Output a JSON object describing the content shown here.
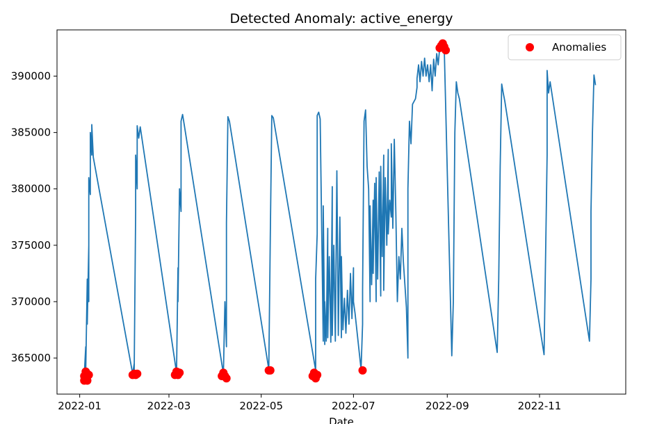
{
  "chart_data": {
    "type": "line",
    "title": "Detected Anomaly: active_energy",
    "xlabel": "Date",
    "ylabel": "",
    "x_tick_labels": [
      "2022-01",
      "2022-03",
      "2022-05",
      "2022-07",
      "2022-09",
      "2022-11"
    ],
    "y_tick_labels": [
      "365000",
      "370000",
      "375000",
      "380000",
      "385000",
      "390000"
    ],
    "y_ticks": [
      365000,
      370000,
      375000,
      380000,
      385000,
      390000
    ],
    "ylim": [
      361800,
      394100
    ],
    "xlim": [
      "2021-12-17",
      "2022-12-28"
    ],
    "grid": false,
    "legend_position": "top-right",
    "series": [
      {
        "type": "line",
        "color": "#1f77b4",
        "points": [
          [
            "2022-01-04",
            363500
          ],
          [
            "2022-01-05",
            366000
          ],
          [
            "2022-01-05",
            363800
          ],
          [
            "2022-01-06",
            372000
          ],
          [
            "2022-01-06",
            368000
          ],
          [
            "2022-01-07",
            375000
          ],
          [
            "2022-01-07",
            370000
          ],
          [
            "2022-01-07",
            381000
          ],
          [
            "2022-01-08",
            379500
          ],
          [
            "2022-01-08",
            385000
          ],
          [
            "2022-01-09",
            383000
          ],
          [
            "2022-01-09",
            385700
          ],
          [
            "2022-01-10",
            382800
          ],
          [
            "2022-02-05",
            363600
          ],
          [
            "2022-02-06",
            364500
          ],
          [
            "2022-02-06",
            363800
          ],
          [
            "2022-02-07",
            378000
          ],
          [
            "2022-02-07",
            383000
          ],
          [
            "2022-02-08",
            380000
          ],
          [
            "2022-02-08",
            385600
          ],
          [
            "2022-02-09",
            384500
          ],
          [
            "2022-02-10",
            385500
          ],
          [
            "2022-03-06",
            363700
          ],
          [
            "2022-03-07",
            373000
          ],
          [
            "2022-03-07",
            370000
          ],
          [
            "2022-03-08",
            380000
          ],
          [
            "2022-03-09",
            378000
          ],
          [
            "2022-03-09",
            386000
          ],
          [
            "2022-03-10",
            386600
          ],
          [
            "2022-03-11",
            385800
          ],
          [
            "2022-04-06",
            363600
          ],
          [
            "2022-04-07",
            370000
          ],
          [
            "2022-04-08",
            366000
          ],
          [
            "2022-04-08",
            377000
          ],
          [
            "2022-04-09",
            386400
          ],
          [
            "2022-04-10",
            386000
          ],
          [
            "2022-05-06",
            364000
          ],
          [
            "2022-05-07",
            376000
          ],
          [
            "2022-05-08",
            386500
          ],
          [
            "2022-05-09",
            386300
          ],
          [
            "2022-06-06",
            363900
          ],
          [
            "2022-06-06",
            372000
          ],
          [
            "2022-06-07",
            376000
          ],
          [
            "2022-06-07",
            386500
          ],
          [
            "2022-06-08",
            386800
          ],
          [
            "2022-06-09",
            386200
          ],
          [
            "2022-06-11",
            366500
          ],
          [
            "2022-06-11",
            378500
          ],
          [
            "2022-06-12",
            366200
          ],
          [
            "2022-06-12",
            370000
          ],
          [
            "2022-06-13",
            366500
          ],
          [
            "2022-06-14",
            376500
          ],
          [
            "2022-06-14",
            366800
          ],
          [
            "2022-06-15",
            374000
          ],
          [
            "2022-06-16",
            366400
          ],
          [
            "2022-06-17",
            380200
          ],
          [
            "2022-06-17",
            367000
          ],
          [
            "2022-06-18",
            375000
          ],
          [
            "2022-06-19",
            366500
          ],
          [
            "2022-06-20",
            381600
          ],
          [
            "2022-06-21",
            367000
          ],
          [
            "2022-06-22",
            377500
          ],
          [
            "2022-06-23",
            366800
          ],
          [
            "2022-06-23",
            374000
          ],
          [
            "2022-06-24",
            367500
          ],
          [
            "2022-06-25",
            370300
          ],
          [
            "2022-06-26",
            367200
          ],
          [
            "2022-06-27",
            371000
          ],
          [
            "2022-06-28",
            368000
          ],
          [
            "2022-06-29",
            372500
          ],
          [
            "2022-06-30",
            368500
          ],
          [
            "2022-07-01",
            373000
          ],
          [
            "2022-07-01",
            370000
          ],
          [
            "2022-07-02",
            369000
          ],
          [
            "2022-07-06",
            364000
          ],
          [
            "2022-07-07",
            368000
          ],
          [
            "2022-07-07",
            371000
          ],
          [
            "2022-07-08",
            386000
          ],
          [
            "2022-07-09",
            387000
          ],
          [
            "2022-07-10",
            382000
          ],
          [
            "2022-07-11",
            380000
          ],
          [
            "2022-07-12",
            370000
          ],
          [
            "2022-07-12",
            378500
          ],
          [
            "2022-07-13",
            371500
          ],
          [
            "2022-07-14",
            379000
          ],
          [
            "2022-07-14",
            372500
          ],
          [
            "2022-07-15",
            380500
          ],
          [
            "2022-07-16",
            370000
          ],
          [
            "2022-07-16",
            381000
          ],
          [
            "2022-07-17",
            372000
          ],
          [
            "2022-07-18",
            381500
          ],
          [
            "2022-07-19",
            370500
          ],
          [
            "2022-07-19",
            382000
          ],
          [
            "2022-07-20",
            374000
          ],
          [
            "2022-07-21",
            383000
          ],
          [
            "2022-07-21",
            371000
          ],
          [
            "2022-07-22",
            381000
          ],
          [
            "2022-07-23",
            375000
          ],
          [
            "2022-07-24",
            383500
          ],
          [
            "2022-07-24",
            376000
          ],
          [
            "2022-07-25",
            379000
          ],
          [
            "2022-07-26",
            377500
          ],
          [
            "2022-07-26",
            384000
          ],
          [
            "2022-07-27",
            376500
          ],
          [
            "2022-07-28",
            384400
          ],
          [
            "2022-07-29",
            378000
          ],
          [
            "2022-07-30",
            370000
          ],
          [
            "2022-07-31",
            374000
          ],
          [
            "2022-08-01",
            372000
          ],
          [
            "2022-08-02",
            376500
          ],
          [
            "2022-08-03",
            373500
          ],
          [
            "2022-08-05",
            369500
          ],
          [
            "2022-08-06",
            365000
          ],
          [
            "2022-08-06",
            380000
          ],
          [
            "2022-08-07",
            386000
          ],
          [
            "2022-08-08",
            384000
          ],
          [
            "2022-08-09",
            387500
          ],
          [
            "2022-08-11",
            388000
          ],
          [
            "2022-08-12",
            389000
          ],
          [
            "2022-08-12",
            389800
          ],
          [
            "2022-08-13",
            391000
          ],
          [
            "2022-08-14",
            389500
          ],
          [
            "2022-08-15",
            391300
          ],
          [
            "2022-08-16",
            390000
          ],
          [
            "2022-08-17",
            391600
          ],
          [
            "2022-08-18",
            390000
          ],
          [
            "2022-08-19",
            391000
          ],
          [
            "2022-08-20",
            389500
          ],
          [
            "2022-08-21",
            391000
          ],
          [
            "2022-08-22",
            388700
          ],
          [
            "2022-08-23",
            391500
          ],
          [
            "2022-08-24",
            390000
          ],
          [
            "2022-08-25",
            392000
          ],
          [
            "2022-08-26",
            391000
          ],
          [
            "2022-08-27",
            392500
          ],
          [
            "2022-08-28",
            392800
          ],
          [
            "2022-08-29",
            392300
          ],
          [
            "2022-08-30",
            392600
          ],
          [
            "2022-09-04",
            365200
          ],
          [
            "2022-09-05",
            370000
          ],
          [
            "2022-09-06",
            385000
          ],
          [
            "2022-09-07",
            389500
          ],
          [
            "2022-09-08",
            388500
          ],
          [
            "2022-09-09",
            388000
          ],
          [
            "2022-10-04",
            365500
          ],
          [
            "2022-10-05",
            372000
          ],
          [
            "2022-10-06",
            382000
          ],
          [
            "2022-10-07",
            389300
          ],
          [
            "2022-10-08",
            388500
          ],
          [
            "2022-10-09",
            387800
          ],
          [
            "2022-11-04",
            365300
          ],
          [
            "2022-11-05",
            374000
          ],
          [
            "2022-11-06",
            383000
          ],
          [
            "2022-11-06",
            390500
          ],
          [
            "2022-11-07",
            388500
          ],
          [
            "2022-11-08",
            389500
          ],
          [
            "2022-12-04",
            366500
          ],
          [
            "2022-12-05",
            372000
          ],
          [
            "2022-12-05",
            378000
          ],
          [
            "2022-12-06",
            385000
          ],
          [
            "2022-12-07",
            390100
          ],
          [
            "2022-12-08",
            389200
          ]
        ]
      },
      {
        "type": "scatter",
        "name": "Anomalies",
        "color": "#ff0000",
        "points": [
          [
            "2022-01-04",
            363000
          ],
          [
            "2022-01-04",
            363400
          ],
          [
            "2022-01-05",
            363800
          ],
          [
            "2022-01-05",
            363200
          ],
          [
            "2022-01-06",
            363600
          ],
          [
            "2022-01-06",
            363000
          ],
          [
            "2022-01-07",
            363500
          ],
          [
            "2022-02-05",
            363500
          ],
          [
            "2022-02-06",
            363600
          ],
          [
            "2022-02-07",
            363500
          ],
          [
            "2022-02-08",
            363600
          ],
          [
            "2022-03-05",
            363500
          ],
          [
            "2022-03-06",
            363800
          ],
          [
            "2022-03-07",
            363500
          ],
          [
            "2022-03-08",
            363700
          ],
          [
            "2022-04-05",
            363400
          ],
          [
            "2022-04-06",
            363700
          ],
          [
            "2022-04-07",
            363400
          ],
          [
            "2022-04-08",
            363200
          ],
          [
            "2022-05-06",
            363900
          ],
          [
            "2022-05-07",
            363900
          ],
          [
            "2022-06-04",
            363400
          ],
          [
            "2022-06-05",
            363700
          ],
          [
            "2022-06-06",
            363200
          ],
          [
            "2022-06-07",
            363500
          ],
          [
            "2022-07-07",
            363900
          ],
          [
            "2022-08-27",
            392500
          ],
          [
            "2022-08-28",
            392700
          ],
          [
            "2022-08-29",
            392900
          ],
          [
            "2022-08-30",
            392600
          ],
          [
            "2022-08-31",
            392300
          ]
        ]
      }
    ]
  }
}
